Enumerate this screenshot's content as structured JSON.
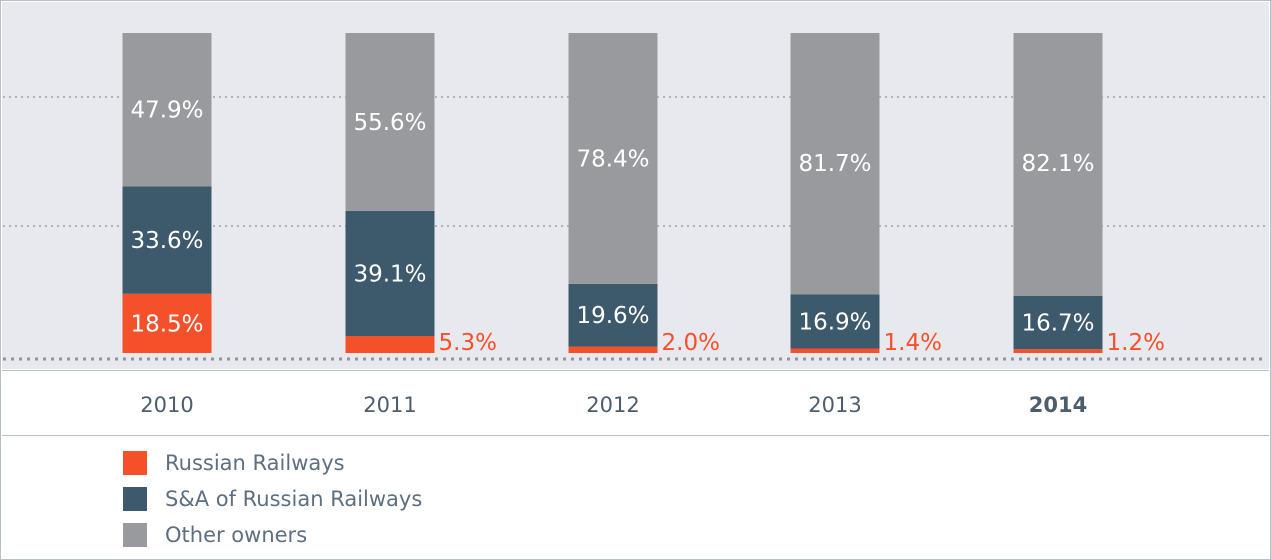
{
  "colors": {
    "russian_railways": "#f4502a",
    "sa_russian_railways": "#3d5a6d",
    "other_owners": "#999a9e"
  },
  "legend": {
    "items": [
      {
        "label": "Russian Railways",
        "color": "#f4502a"
      },
      {
        "label": "S&A of Russian Railways",
        "color": "#3d5a6d"
      },
      {
        "label": "Other owners",
        "color": "#999a9e"
      }
    ]
  },
  "chart_data": {
    "type": "bar",
    "stacked": true,
    "percent": true,
    "categories": [
      "2010",
      "2011",
      "2012",
      "2013",
      "2014"
    ],
    "highlighted_category": "2014",
    "series": [
      {
        "name": "Russian Railways",
        "values": [
          18.5,
          5.3,
          2.0,
          1.4,
          1.2
        ],
        "labels": [
          "18.5%",
          "5.3%",
          "2.0%",
          "1.4%",
          "1.2%"
        ],
        "label_position": [
          "inside",
          "outside",
          "outside",
          "outside",
          "outside"
        ]
      },
      {
        "name": "S&A of Russian Railways",
        "values": [
          33.6,
          39.1,
          19.6,
          16.9,
          16.7
        ],
        "labels": [
          "33.6%",
          "39.1%",
          "19.6%",
          "16.9%",
          "16.7%"
        ]
      },
      {
        "name": "Other owners",
        "values": [
          47.9,
          55.6,
          78.4,
          81.7,
          82.1
        ],
        "labels": [
          "47.9%",
          "55.6%",
          "78.4%",
          "81.7%",
          "82.1%"
        ]
      }
    ],
    "ylim": [
      0,
      100
    ],
    "grid": "dotted horizontal",
    "legend_position": "bottom-left"
  }
}
